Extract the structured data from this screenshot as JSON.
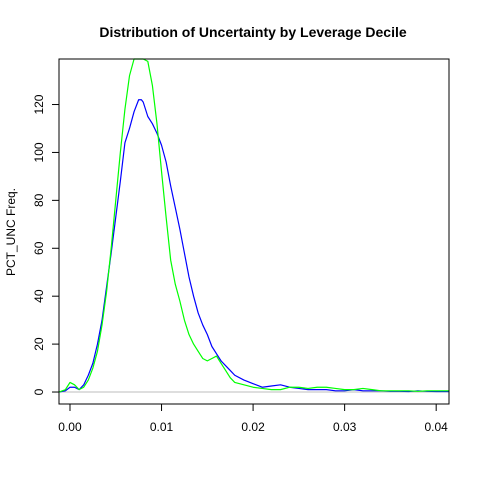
{
  "chart_data": {
    "type": "line",
    "title": "Distribution of Uncertainty by Leverage Decile",
    "xlabel": "",
    "ylabel": "PCT_UNC Freq.",
    "xlim": [
      -0.0012,
      0.0414
    ],
    "ylim": [
      -5.0,
      139.0
    ],
    "xticks": [
      0.0,
      0.01,
      0.02,
      0.03,
      0.04
    ],
    "xtick_labels": [
      "0.00",
      "0.01",
      "0.02",
      "0.03",
      "0.04"
    ],
    "yticks": [
      0,
      20,
      40,
      60,
      80,
      100,
      120
    ],
    "ytick_labels": [
      "0",
      "20",
      "40",
      "60",
      "80",
      "100",
      "120"
    ],
    "grid": false,
    "baseline": {
      "y": 0,
      "color": "#bebebe"
    },
    "series": [
      {
        "color": "#0000ff",
        "x": [
          -0.0012,
          -0.0005,
          0.0,
          0.0005,
          0.001,
          0.0015,
          0.002,
          0.0025,
          0.003,
          0.0035,
          0.004,
          0.0045,
          0.005,
          0.0055,
          0.006,
          0.0065,
          0.007,
          0.0075,
          0.0078,
          0.008,
          0.0085,
          0.009,
          0.0095,
          0.01,
          0.0105,
          0.011,
          0.0115,
          0.012,
          0.0125,
          0.013,
          0.0135,
          0.014,
          0.0145,
          0.015,
          0.0155,
          0.016,
          0.0165,
          0.017,
          0.0175,
          0.018,
          0.019,
          0.02,
          0.021,
          0.022,
          0.023,
          0.024,
          0.025,
          0.026,
          0.027,
          0.028,
          0.029,
          0.03,
          0.031,
          0.032,
          0.033,
          0.034,
          0.035,
          0.036,
          0.037,
          0.038,
          0.039,
          0.04,
          0.041,
          0.0414
        ],
        "y": [
          0,
          0.5,
          2,
          2,
          1,
          3,
          7,
          12,
          20,
          30,
          44,
          58,
          73,
          88,
          104,
          110,
          117,
          122,
          122,
          121,
          115,
          112,
          108,
          103,
          96,
          86,
          77,
          68,
          58,
          48,
          40,
          33,
          28,
          24,
          19,
          16,
          13,
          11,
          9,
          7,
          5,
          3.5,
          2,
          2.5,
          3,
          2,
          1.5,
          1,
          1,
          1,
          0.5,
          0.5,
          1,
          0.5,
          0.5,
          0.5,
          0.3,
          0.3,
          0.2,
          0.5,
          0.3,
          0.2,
          0.2,
          0.2
        ]
      },
      {
        "color": "#00ff00",
        "x": [
          -0.0012,
          -0.0005,
          0.0,
          0.0005,
          0.001,
          0.0015,
          0.002,
          0.0025,
          0.003,
          0.0035,
          0.004,
          0.0045,
          0.005,
          0.0055,
          0.006,
          0.0065,
          0.007,
          0.0075,
          0.008,
          0.0085,
          0.009,
          0.0095,
          0.01,
          0.0105,
          0.011,
          0.0115,
          0.012,
          0.0125,
          0.013,
          0.0135,
          0.014,
          0.0145,
          0.015,
          0.0155,
          0.016,
          0.0165,
          0.017,
          0.0175,
          0.018,
          0.019,
          0.02,
          0.021,
          0.022,
          0.023,
          0.024,
          0.025,
          0.026,
          0.027,
          0.028,
          0.029,
          0.03,
          0.031,
          0.032,
          0.033,
          0.034,
          0.035,
          0.036,
          0.037,
          0.038,
          0.039,
          0.04,
          0.041,
          0.0414
        ],
        "y": [
          0,
          1,
          4,
          3,
          1,
          2,
          5,
          10,
          17,
          28,
          42,
          60,
          80,
          100,
          118,
          132,
          139,
          139,
          139,
          138,
          128,
          112,
          92,
          73,
          55,
          45,
          38,
          30,
          24,
          20,
          17,
          14,
          13,
          14,
          15,
          12,
          9,
          6,
          4,
          3,
          2,
          1.5,
          1,
          1,
          2,
          2,
          1.5,
          2,
          2,
          1.5,
          1,
          1,
          1.5,
          1,
          0.5,
          0.5,
          0.5,
          0.5,
          0.3,
          0.5,
          0.5,
          0.5,
          0.5
        ]
      }
    ]
  }
}
